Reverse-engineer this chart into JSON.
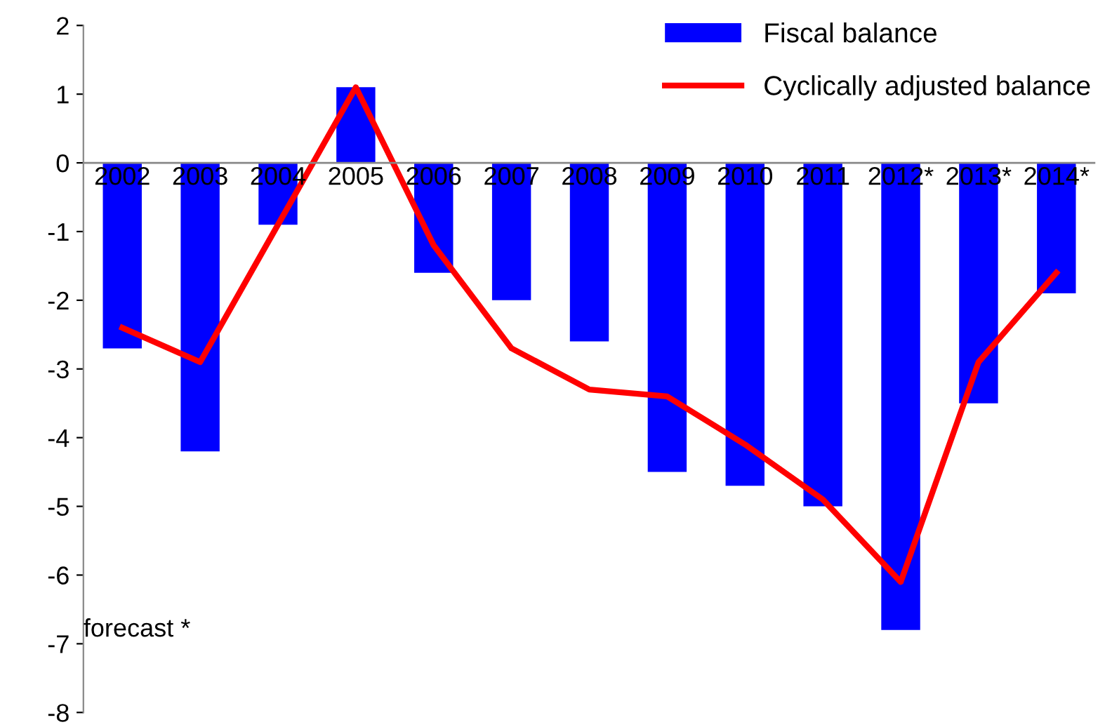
{
  "chart_data": {
    "type": "bar",
    "categories": [
      "2002",
      "2003",
      "2004",
      "2005",
      "2006",
      "2007",
      "2008",
      "2009",
      "2010",
      "2011",
      "2012*",
      "2013*",
      "2014*"
    ],
    "series": [
      {
        "name": "Fiscal balance",
        "color": "#0000ff",
        "values": [
          -2.7,
          -4.2,
          -0.9,
          1.1,
          -1.6,
          -2.0,
          -2.6,
          -4.5,
          -4.7,
          -5.0,
          -6.8,
          -3.5,
          -1.9
        ]
      },
      {
        "name": "Cyclically adjusted balance",
        "type": "line",
        "color": "#ff0000",
        "values": [
          -2.4,
          -2.9,
          -0.9,
          1.1,
          -1.2,
          -2.7,
          -3.3,
          -3.4,
          -4.1,
          -4.9,
          -6.1,
          -2.9,
          -1.6
        ]
      }
    ],
    "ylim": [
      -8,
      2
    ],
    "yticks": [
      -8,
      -7,
      -6,
      -5,
      -4,
      -3,
      -2,
      -1,
      0,
      1,
      2
    ],
    "grid": false,
    "legend": "top right",
    "line_style": "solid",
    "marker": "none",
    "annotations": [
      "forecast *"
    ]
  }
}
